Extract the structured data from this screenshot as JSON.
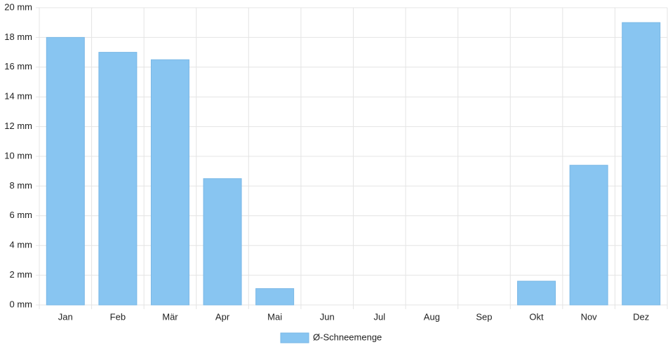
{
  "chart_data": {
    "type": "bar",
    "categories": [
      "Jan",
      "Feb",
      "Mär",
      "Apr",
      "Mai",
      "Jun",
      "Jul",
      "Aug",
      "Sep",
      "Okt",
      "Nov",
      "Dez"
    ],
    "series": [
      {
        "name": "Ø-Schneemenge",
        "color": "#88c5f1",
        "values": [
          18,
          17,
          16.5,
          8.5,
          1.1,
          0,
          0,
          0,
          0,
          1.6,
          9.4,
          19
        ]
      }
    ],
    "ylim": [
      0,
      20
    ],
    "yticks": [
      {
        "value": 0,
        "label": "0 mm"
      },
      {
        "value": 2,
        "label": "2 mm"
      },
      {
        "value": 4,
        "label": "4 mm"
      },
      {
        "value": 6,
        "label": "6 mm"
      },
      {
        "value": 8,
        "label": "8 mm"
      },
      {
        "value": 10,
        "label": "10 mm"
      },
      {
        "value": 12,
        "label": "12 mm"
      },
      {
        "value": 14,
        "label": "14 mm"
      },
      {
        "value": 16,
        "label": "16 mm"
      },
      {
        "value": 18,
        "label": "18 mm"
      },
      {
        "value": 20,
        "label": "20 mm"
      }
    ],
    "grid": true
  }
}
